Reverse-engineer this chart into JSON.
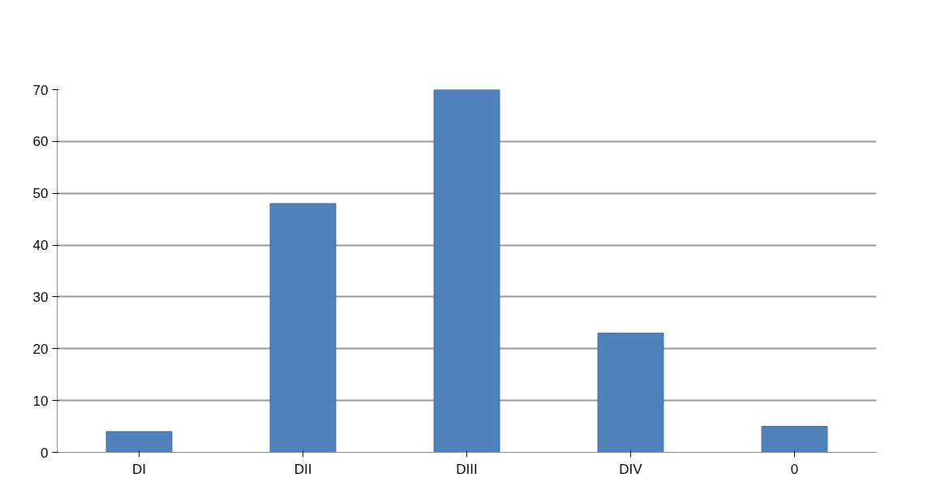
{
  "chart_data": {
    "type": "bar",
    "categories": [
      "DI",
      "DII",
      "DIII",
      "DIV",
      "0"
    ],
    "values": [
      4,
      48,
      70,
      23,
      5
    ],
    "color": "#4f81bd",
    "ylim": [
      0,
      70
    ],
    "yticks": [
      0,
      10,
      20,
      30,
      40,
      50,
      60,
      70
    ],
    "grid": "y"
  }
}
